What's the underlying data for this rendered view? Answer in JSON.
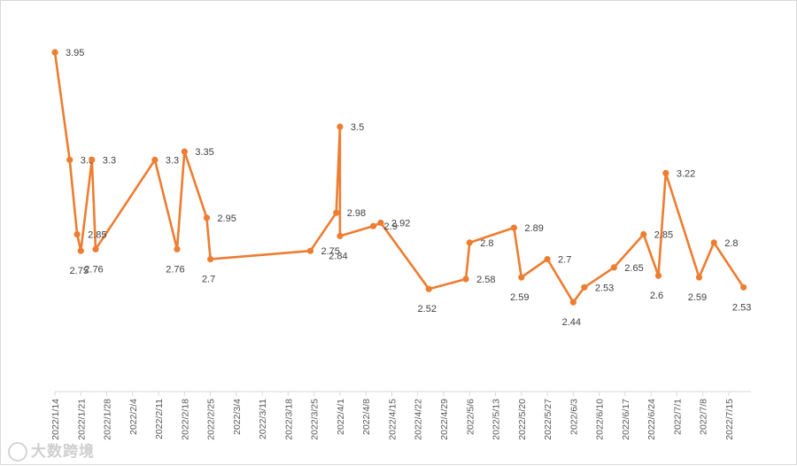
{
  "watermark": {
    "text": "大数跨境",
    "icon": "brand-logo-icon"
  },
  "chart_data": {
    "type": "line",
    "title": "",
    "xlabel": "",
    "ylabel": "",
    "ylim": [
      1.9,
      4.1
    ],
    "grid": false,
    "legend": "none",
    "colors": {
      "line": "#ED7D31",
      "axis": "#d9d9d9",
      "text": "#404040"
    },
    "x_ticks": [
      "2022/1/14",
      "2022/1/21",
      "2022/1/28",
      "2022/2/4",
      "2022/2/11",
      "2022/2/18",
      "2022/2/25",
      "2022/3/4",
      "2022/3/11",
      "2022/3/18",
      "2022/3/25",
      "2022/4/1",
      "2022/4/8",
      "2022/4/15",
      "2022/4/22",
      "2022/4/29",
      "2022/5/6",
      "2022/5/13",
      "2022/5/20",
      "2022/5/27",
      "2022/6/3",
      "2022/6/10",
      "2022/6/17",
      "2022/6/24",
      "2022/7/1",
      "2022/7/8",
      "2022/7/15"
    ],
    "x_range": [
      "2022/1/14",
      "2022/7/21"
    ],
    "series": [
      {
        "points": [
          {
            "x": "2022/1/14",
            "y": 3.95
          },
          {
            "x": "2022/1/18",
            "y": 3.3
          },
          {
            "x": "2022/1/20",
            "y": 2.85
          },
          {
            "x": "2022/1/21",
            "y": 2.75
          },
          {
            "x": "2022/1/24",
            "y": 3.3
          },
          {
            "x": "2022/1/25",
            "y": 2.76
          },
          {
            "x": "2022/2/10",
            "y": 3.3
          },
          {
            "x": "2022/2/16",
            "y": 2.76
          },
          {
            "x": "2022/2/18",
            "y": 3.35
          },
          {
            "x": "2022/2/24",
            "y": 2.95
          },
          {
            "x": "2022/2/25",
            "y": 2.7
          },
          {
            "x": "2022/3/24",
            "y": 2.75
          },
          {
            "x": "2022/3/31",
            "y": 2.98
          },
          {
            "x": "2022/4/1",
            "y": 3.5
          },
          {
            "x": "2022/4/1",
            "y": 2.84
          },
          {
            "x": "2022/4/10",
            "y": 2.9
          },
          {
            "x": "2022/4/12",
            "y": 2.92
          },
          {
            "x": "2022/4/25",
            "y": 2.52
          },
          {
            "x": "2022/5/5",
            "y": 2.58
          },
          {
            "x": "2022/5/6",
            "y": 2.8
          },
          {
            "x": "2022/5/18",
            "y": 2.89
          },
          {
            "x": "2022/5/20",
            "y": 2.59
          },
          {
            "x": "2022/5/27",
            "y": 2.7
          },
          {
            "x": "2022/6/3",
            "y": 2.44
          },
          {
            "x": "2022/6/6",
            "y": 2.53
          },
          {
            "x": "2022/6/14",
            "y": 2.65
          },
          {
            "x": "2022/6/22",
            "y": 2.85
          },
          {
            "x": "2022/6/26",
            "y": 2.6
          },
          {
            "x": "2022/6/28",
            "y": 3.22
          },
          {
            "x": "2022/7/7",
            "y": 2.59
          },
          {
            "x": "2022/7/11",
            "y": 2.8
          },
          {
            "x": "2022/7/19",
            "y": 2.53
          }
        ]
      }
    ]
  }
}
